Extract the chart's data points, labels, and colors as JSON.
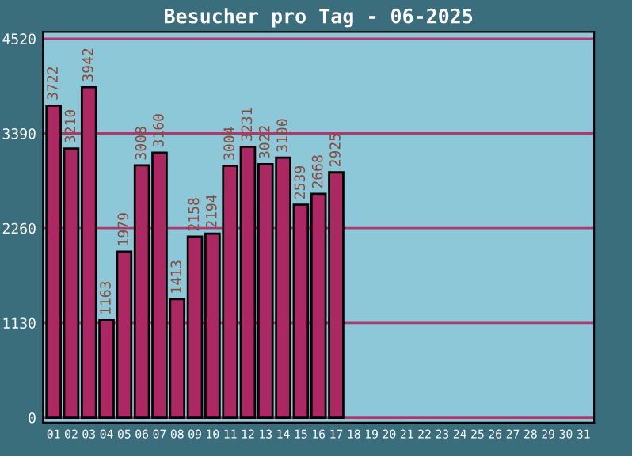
{
  "chart_data": {
    "type": "bar",
    "title": "Besucher pro Tag - 06-2025",
    "categories": [
      "01",
      "02",
      "03",
      "04",
      "05",
      "06",
      "07",
      "08",
      "09",
      "10",
      "11",
      "12",
      "13",
      "14",
      "15",
      "16",
      "17",
      "18",
      "19",
      "20",
      "21",
      "22",
      "23",
      "24",
      "25",
      "26",
      "27",
      "28",
      "29",
      "30",
      "31"
    ],
    "values": [
      3722,
      3210,
      3942,
      1163,
      1979,
      3008,
      3160,
      1413,
      2158,
      2194,
      3004,
      3231,
      3022,
      3100,
      2539,
      2668,
      2925,
      null,
      null,
      null,
      null,
      null,
      null,
      null,
      null,
      null,
      null,
      null,
      null,
      null,
      null
    ],
    "color": "#ab2862",
    "data_labels": true,
    "ylim": [
      -60,
      4600
    ],
    "yticks": [
      0,
      1130,
      2260,
      3390,
      4520
    ],
    "grid": "y"
  }
}
